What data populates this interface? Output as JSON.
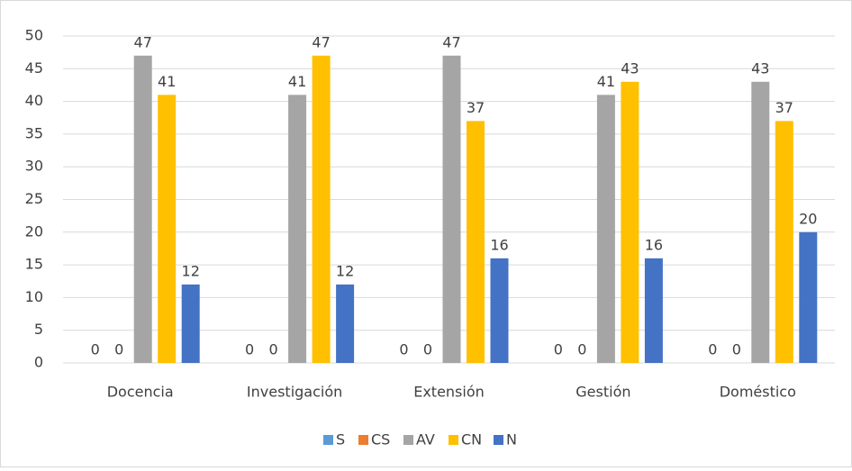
{
  "chart_data": {
    "type": "bar",
    "categories": [
      "Docencia",
      "Investigación",
      "Extensión",
      "Gestión",
      "Doméstico"
    ],
    "series": [
      {
        "name": "S",
        "color": "#5b9bd5",
        "values": [
          0,
          0,
          0,
          0,
          0
        ]
      },
      {
        "name": "CS",
        "color": "#ed7d31",
        "values": [
          0,
          0,
          0,
          0,
          0
        ]
      },
      {
        "name": "AV",
        "color": "#a5a5a5",
        "values": [
          47,
          41,
          47,
          41,
          43
        ]
      },
      {
        "name": "CN",
        "color": "#ffc000",
        "values": [
          41,
          47,
          37,
          43,
          37
        ]
      },
      {
        "name": "N",
        "color": "#4472c4",
        "values": [
          12,
          12,
          16,
          16,
          20
        ]
      }
    ],
    "ylim": [
      0,
      50
    ],
    "yticks": [
      0,
      5,
      10,
      15,
      20,
      25,
      30,
      35,
      40,
      45,
      50
    ],
    "grid": true,
    "legend": "bottom"
  }
}
